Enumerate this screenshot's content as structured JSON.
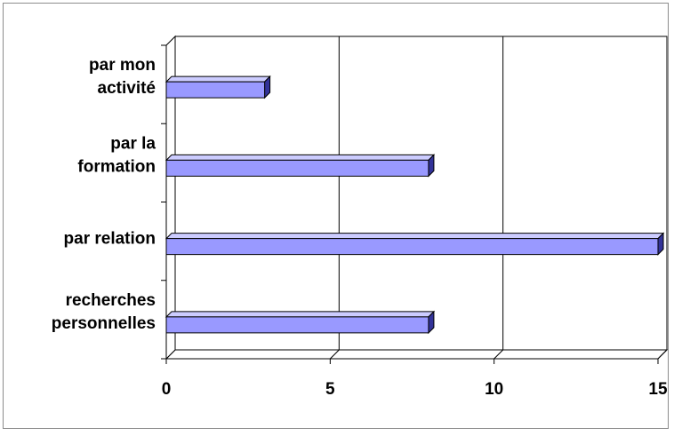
{
  "chart_data": {
    "type": "bar",
    "orientation": "horizontal",
    "style": "3d",
    "categories": [
      [
        "recherches",
        "personnelles"
      ],
      [
        "par relation"
      ],
      [
        "par la",
        "formation"
      ],
      [
        "par mon",
        "activité"
      ]
    ],
    "values": [
      8,
      15,
      8,
      3
    ],
    "xlim": [
      0,
      15
    ],
    "xticks": [
      "0",
      "5",
      "10",
      "15"
    ],
    "gridlines": "vertical",
    "legend": "none",
    "colors": {
      "bar_front": "#9999ff",
      "bar_top": "#ccccff",
      "bar_side": "#333399",
      "bar_outline": "#000000",
      "wall": "#ffffff",
      "gridline": "#000000"
    }
  }
}
